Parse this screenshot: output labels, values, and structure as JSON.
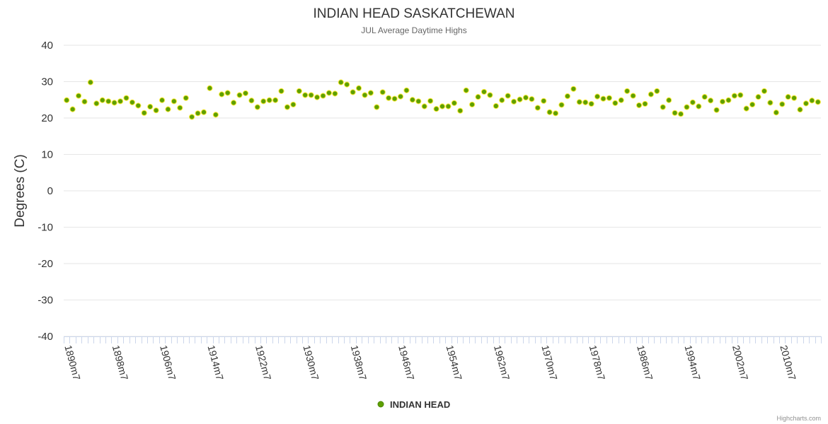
{
  "chart_data": {
    "type": "scatter",
    "title": "INDIAN HEAD SASKATCHEWAN",
    "subtitle": "JUL Average Daytime Highs",
    "ylabel": "Degrees (C)",
    "xlabel": "",
    "ylim": [
      -40,
      40
    ],
    "yticks": [
      40,
      30,
      20,
      10,
      0,
      -10,
      -20,
      -30,
      -40
    ],
    "x_start_year": 1890,
    "x_end_year": 2014,
    "x_tick_labels": [
      "1890m7",
      "1898m7",
      "1906m7",
      "1914m7",
      "1922m7",
      "1930m7",
      "1938m7",
      "1946m7",
      "1954m7",
      "1962m7",
      "1970m7",
      "1978m7",
      "1986m7",
      "1994m7",
      "2002m7",
      "2010m7"
    ],
    "grid": true,
    "legend_position": "bottom-center",
    "series": [
      {
        "name": "INDIAN HEAD",
        "color": "#5ea000",
        "values": [
          24.9,
          22.4,
          26.1,
          24.5,
          29.8,
          24.0,
          24.9,
          24.6,
          24.2,
          24.6,
          25.5,
          24.3,
          23.4,
          21.4,
          23.1,
          22.1,
          24.9,
          22.4,
          24.6,
          22.8,
          25.5,
          20.3,
          21.3,
          21.6,
          28.2,
          20.9,
          26.5,
          26.9,
          24.2,
          26.3,
          26.8,
          24.8,
          23.0,
          24.6,
          24.9,
          24.9,
          27.4,
          23.0,
          23.7,
          27.4,
          26.3,
          26.3,
          25.7,
          26.1,
          26.9,
          26.7,
          29.8,
          29.2,
          27.1,
          28.2,
          26.3,
          26.9,
          23.0,
          27.1,
          25.5,
          25.3,
          25.9,
          27.6,
          25.0,
          24.6,
          23.2,
          24.7,
          22.5,
          23.2,
          23.2,
          24.1,
          22.0,
          27.6,
          23.7,
          25.8,
          27.2,
          26.3,
          23.3,
          24.9,
          26.1,
          24.5,
          25.1,
          25.6,
          25.2,
          22.8,
          24.7,
          21.6,
          21.3,
          23.6,
          26.0,
          28.0,
          24.4,
          24.3,
          23.9,
          25.9,
          25.3,
          25.5,
          24.1,
          24.9,
          27.4,
          26.1,
          23.5,
          23.9,
          26.5,
          27.4,
          23.0,
          24.9,
          21.4,
          21.1,
          23.0,
          24.3,
          23.2,
          25.8,
          24.8,
          22.2,
          24.5,
          24.9,
          26.1,
          26.3,
          22.6,
          23.7,
          25.8,
          27.4,
          24.2,
          21.5,
          23.8,
          25.8,
          25.5,
          22.3,
          24.0,
          24.8,
          24.4
        ]
      }
    ]
  },
  "credits": "Highcharts.com"
}
